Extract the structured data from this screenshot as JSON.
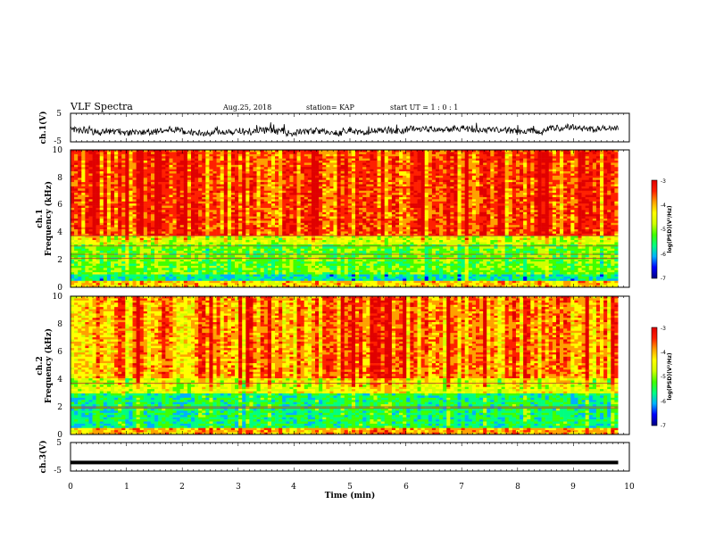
{
  "header": {
    "title": "VLF Spectra",
    "date": "Aug.25, 2018",
    "station": "station= KAP",
    "start": "start  UT =   1 : 0  : 1"
  },
  "colormap": {
    "stops": [
      "#000080",
      "#0000ff",
      "#00b0ff",
      "#00ff80",
      "#40ff00",
      "#d0ff00",
      "#ffff00",
      "#ffa000",
      "#ff2000",
      "#e00000",
      "#ffffff"
    ]
  },
  "chart_data": [
    {
      "type": "line",
      "id": "ch1-waveform",
      "ylabel": "ch.1(V)",
      "yticklabels": [
        "5",
        "-5"
      ],
      "ylim": [
        -5,
        5
      ],
      "xlim": [
        0,
        10
      ],
      "description_values": {
        "x_end": 9.8,
        "typical_amplitude_range": [
          -2.0,
          1.0
        ]
      }
    },
    {
      "type": "heatmap",
      "id": "ch1-spectrogram",
      "ylabel": "Frequency (kHz)",
      "channel": "ch.1",
      "yticklabels": [
        "0",
        "2",
        "4",
        "6",
        "8",
        "10"
      ],
      "ylim": [
        0,
        10
      ],
      "xlim": [
        0,
        10
      ],
      "x_end": 9.8,
      "colorbar": {
        "label": "log(PSD)(V²/Hz)",
        "ticklabels": [
          "-3",
          "-4",
          "-5",
          "-6",
          "-7"
        ],
        "range": [
          -7,
          -3
        ]
      },
      "bands_log_psd": [
        {
          "fmin": 0,
          "fmax": 0.5,
          "level": -4.2
        },
        {
          "fmin": 0.5,
          "fmax": 1.0,
          "level": -5.8
        },
        {
          "fmin": 1.0,
          "fmax": 3.2,
          "level": -5.2
        },
        {
          "fmin": 3.2,
          "fmax": 3.7,
          "level": -4.7
        },
        {
          "fmin": 3.7,
          "fmax": 10,
          "level": -3.6
        }
      ],
      "lines_khz": [
        2.1,
        2.4,
        3.0,
        3.75
      ]
    },
    {
      "type": "heatmap",
      "id": "ch2-spectrogram",
      "ylabel": "Frequency (kHz)",
      "channel": "ch.2",
      "yticklabels": [
        "0",
        "2",
        "4",
        "6",
        "8",
        "10"
      ],
      "ylim": [
        0,
        10
      ],
      "xlim": [
        0,
        10
      ],
      "x_end": 9.8,
      "colorbar": {
        "label": "log(PSD)(V²/Hz)",
        "ticklabels": [
          "-3",
          "-4",
          "-5",
          "-6",
          "-7"
        ],
        "range": [
          -7,
          -3
        ]
      },
      "bands_log_psd": [
        {
          "fmin": 0,
          "fmax": 0.5,
          "level": -4.0
        },
        {
          "fmin": 0.5,
          "fmax": 1.2,
          "level": -5.6
        },
        {
          "fmin": 1.2,
          "fmax": 3.0,
          "level": -5.6
        },
        {
          "fmin": 3.0,
          "fmax": 4.0,
          "level": -4.6
        },
        {
          "fmin": 4.0,
          "fmax": 10,
          "level": -3.9
        }
      ],
      "lines_khz": [
        1.9,
        2.0,
        3.7
      ]
    },
    {
      "type": "line",
      "id": "ch3-waveform",
      "ylabel": "ch.3(V)",
      "yticklabels": [
        "5",
        "-5"
      ],
      "ylim": [
        -5,
        5
      ],
      "xlim": [
        0,
        10
      ],
      "description_values": {
        "x_end": 9.8,
        "level": -2.0
      }
    }
  ],
  "xaxis": {
    "label": "Time  (min)",
    "ticklabels": [
      "0",
      "1",
      "2",
      "3",
      "4",
      "5",
      "6",
      "7",
      "8",
      "9",
      "10"
    ],
    "range": [
      0,
      10
    ]
  }
}
